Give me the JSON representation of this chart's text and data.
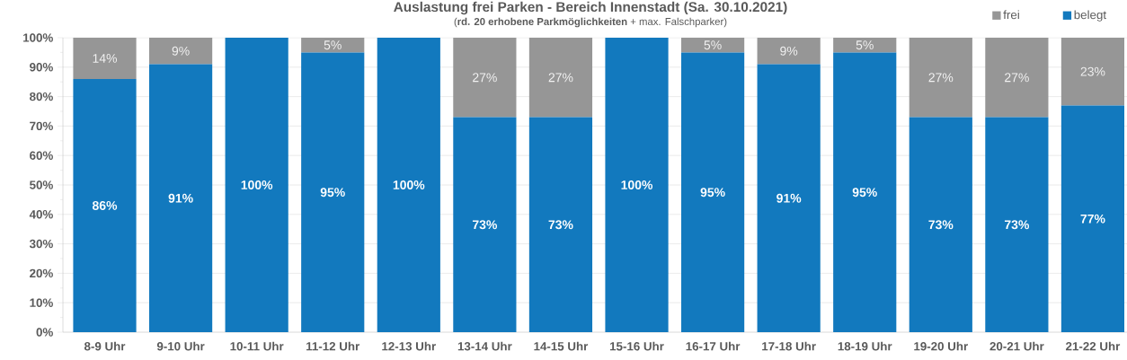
{
  "chart_data": {
    "type": "bar",
    "stacked": true,
    "title": "Auslastung frei Parken - Bereich Innenstadt (Sa. 30.10.2021)",
    "subtitle": "(**rd. 20 erhobene Parkmöglichkeiten** + max. Falschparker)",
    "categories": [
      "8-9 Uhr",
      "9-10 Uhr",
      "10-11 Uhr",
      "11-12 Uhr",
      "12-13 Uhr",
      "13-14 Uhr",
      "14-15 Uhr",
      "15-16 Uhr",
      "16-17 Uhr",
      "17-18 Uhr",
      "18-19 Uhr",
      "19-20 Uhr",
      "20-21 Uhr",
      "21-22 Uhr"
    ],
    "series": [
      {
        "name": "belegt",
        "color": "#1279be",
        "values": [
          86,
          91,
          100,
          95,
          100,
          73,
          73,
          100,
          95,
          91,
          95,
          73,
          73,
          77
        ],
        "value_labels": [
          "86%",
          "91%",
          "100%",
          "95%",
          "100%",
          "73%",
          "73%",
          "100%",
          "95%",
          "91%",
          "95%",
          "73%",
          "73%",
          "77%"
        ]
      },
      {
        "name": "frei",
        "color": "#969696",
        "values": [
          14,
          9,
          0,
          5,
          0,
          27,
          27,
          0,
          5,
          9,
          5,
          27,
          27,
          23
        ],
        "value_labels": [
          "14%",
          "9%",
          null,
          "5%",
          null,
          "27%",
          "27%",
          null,
          "5%",
          "9%",
          "5%",
          "27%",
          "27%",
          "23%"
        ]
      }
    ],
    "ylim": [
      0,
      100
    ],
    "yticks": [
      {
        "value": 0,
        "label": "0%"
      },
      {
        "value": 10,
        "label": "10%"
      },
      {
        "value": 20,
        "label": "20%"
      },
      {
        "value": 30,
        "label": "30%"
      },
      {
        "value": 40,
        "label": "40%"
      },
      {
        "value": 50,
        "label": "50%"
      },
      {
        "value": 60,
        "label": "60%"
      },
      {
        "value": 70,
        "label": "70%"
      },
      {
        "value": 80,
        "label": "80%"
      },
      {
        "value": 90,
        "label": "90%"
      },
      {
        "value": 100,
        "label": "100%"
      }
    ],
    "grid": "y",
    "legend": "top right"
  }
}
